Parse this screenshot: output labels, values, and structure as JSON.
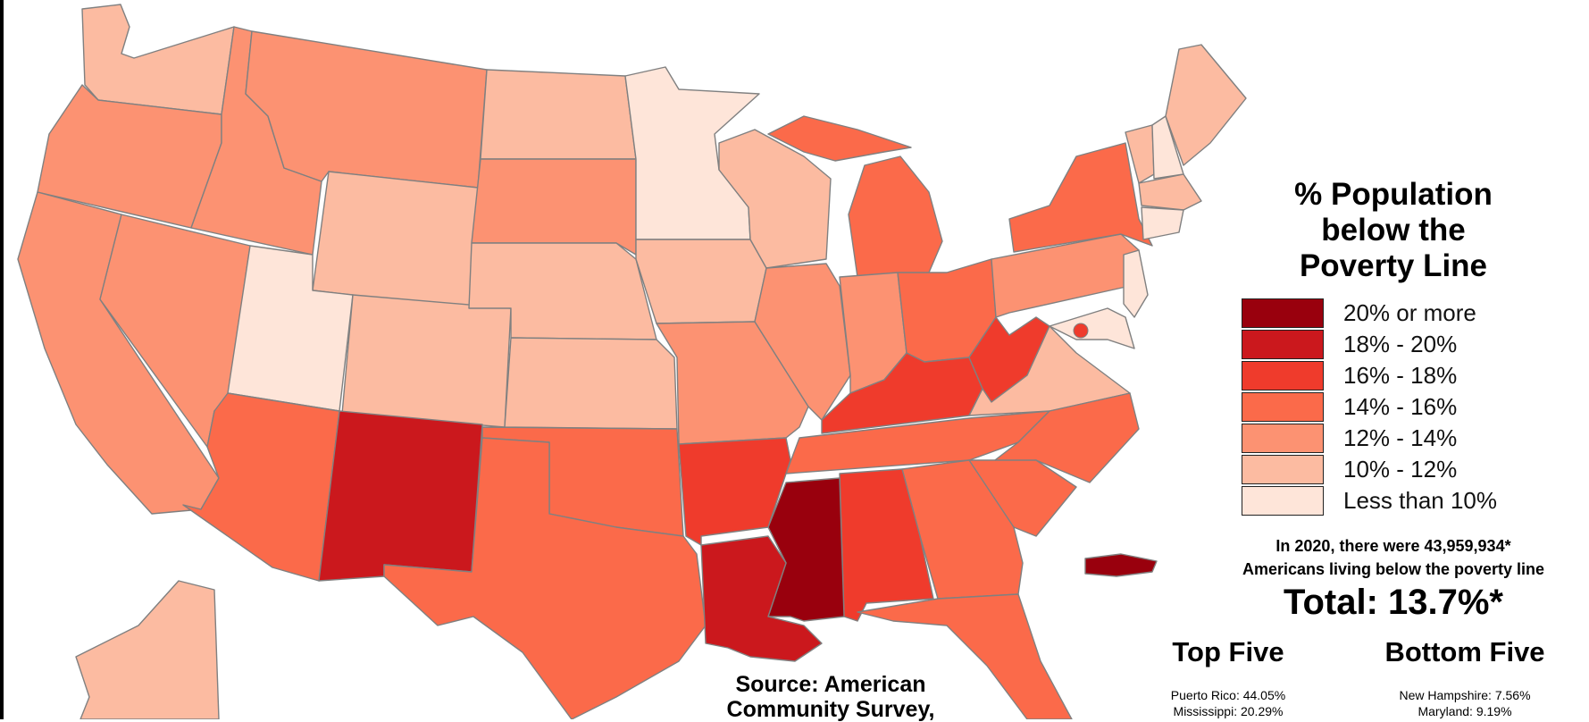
{
  "legend": {
    "title_line1": "% Population",
    "title_line2": "below the",
    "title_line3": "Poverty Line",
    "items": [
      {
        "label": "20% or more",
        "color": "#99000d"
      },
      {
        "label": "18% - 20%",
        "color": "#cb181d"
      },
      {
        "label": "16% - 18%",
        "color": "#ef3b2c"
      },
      {
        "label": "14% - 16%",
        "color": "#fb6a4a"
      },
      {
        "label": "12% - 14%",
        "color": "#fc9272"
      },
      {
        "label": "10% - 12%",
        "color": "#fcbba1"
      },
      {
        "label": "Less than 10%",
        "color": "#fee5d9"
      }
    ]
  },
  "stats": {
    "line1": "In 2020, there were 43,959,934*",
    "line2": "Americans living below the poverty line",
    "total": "Total: 13.7%*"
  },
  "rankings": {
    "top_heading": "Top Five",
    "bottom_heading": "Bottom Five",
    "top_items": [
      "Puerto Rico: 44.05%",
      "Mississippi: 20.29%"
    ],
    "bottom_items": [
      "New Hampshire: 7.56%",
      "Maryland: 9.19%"
    ]
  },
  "source": {
    "line1": "Source: American",
    "line2": "Community Survey,"
  }
}
